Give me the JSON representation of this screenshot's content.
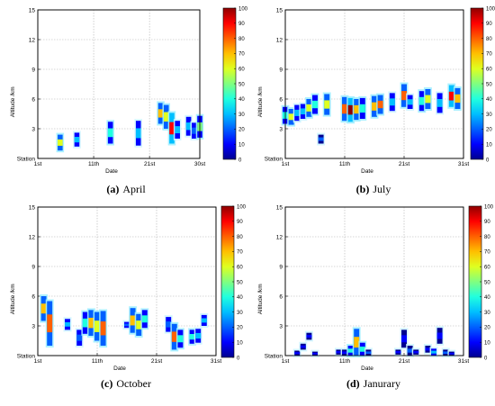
{
  "colorbar": {
    "ticks": [
      "0",
      "10",
      "20",
      "30",
      "40",
      "50",
      "60",
      "70",
      "80",
      "90",
      "100"
    ],
    "colors": [
      "#00008f",
      "#0000ff",
      "#0060ff",
      "#00bfff",
      "#20ffdf",
      "#80ff80",
      "#dfff20",
      "#ffbf00",
      "#ff6000",
      "#ff0000",
      "#8f0000"
    ]
  },
  "chart_data": [
    {
      "type": "heatmap",
      "caption_label": "(a)",
      "caption_text": "April",
      "xlabel": "Date",
      "ylabel": "Altitude /km",
      "xticks": [
        "1st",
        "11th",
        "21st",
        "30st"
      ],
      "yticks": [
        "Station",
        "3",
        "6",
        "9",
        "12",
        "15"
      ],
      "ylim": [
        0,
        15
      ],
      "grid": true,
      "columns": [
        {
          "x": 5,
          "y0": 0.8,
          "y1": 2.4,
          "peak": 60
        },
        {
          "x": 8,
          "y0": 1.2,
          "y1": 2.6,
          "peak": 30
        },
        {
          "x": 14,
          "y0": 1.5,
          "y1": 3.7,
          "peak": 40
        },
        {
          "x": 19,
          "y0": 1.3,
          "y1": 3.8,
          "peak": 25
        },
        {
          "x": 23,
          "y0": 3.5,
          "y1": 5.6,
          "peak": 70
        },
        {
          "x": 24,
          "y0": 3.0,
          "y1": 5.4,
          "peak": 60
        },
        {
          "x": 25,
          "y0": 1.5,
          "y1": 4.6,
          "peak": 85
        },
        {
          "x": 26,
          "y0": 2.0,
          "y1": 3.8,
          "peak": 30
        },
        {
          "x": 28,
          "y0": 2.3,
          "y1": 4.2,
          "peak": 25
        },
        {
          "x": 29,
          "y0": 2.0,
          "y1": 3.6,
          "peak": 20
        },
        {
          "x": 30,
          "y0": 2.1,
          "y1": 4.3,
          "peak": 45
        }
      ]
    },
    {
      "type": "heatmap",
      "caption_label": "(b)",
      "caption_text": "July",
      "xlabel": "Date",
      "ylabel": "Altitude /km",
      "xticks": [
        "1st",
        "11th",
        "21st",
        "31st"
      ],
      "yticks": [
        "Station",
        "3",
        "6",
        "9",
        "12",
        "15"
      ],
      "ylim": [
        0,
        15
      ],
      "grid": true,
      "columns": [
        {
          "x": 1,
          "y0": 3.5,
          "y1": 5.2,
          "peak": 40
        },
        {
          "x": 2,
          "y0": 3.4,
          "y1": 5.0,
          "peak": 60
        },
        {
          "x": 3,
          "y0": 3.8,
          "y1": 5.4,
          "peak": 30
        },
        {
          "x": 4,
          "y0": 4.0,
          "y1": 5.5,
          "peak": 25
        },
        {
          "x": 5,
          "y0": 4.2,
          "y1": 6.0,
          "peak": 55
        },
        {
          "x": 6,
          "y0": 4.5,
          "y1": 6.4,
          "peak": 40
        },
        {
          "x": 7,
          "y0": 1.5,
          "y1": 2.4,
          "peak": 15
        },
        {
          "x": 8,
          "y0": 4.4,
          "y1": 6.5,
          "peak": 60
        },
        {
          "x": 11,
          "y0": 3.8,
          "y1": 6.2,
          "peak": 80
        },
        {
          "x": 12,
          "y0": 3.7,
          "y1": 6.1,
          "peak": 95
        },
        {
          "x": 13,
          "y0": 3.9,
          "y1": 6.0,
          "peak": 70
        },
        {
          "x": 14,
          "y0": 4.0,
          "y1": 6.1,
          "peak": 40
        },
        {
          "x": 16,
          "y0": 4.2,
          "y1": 6.3,
          "peak": 65
        },
        {
          "x": 17,
          "y0": 4.5,
          "y1": 6.4,
          "peak": 75
        },
        {
          "x": 19,
          "y0": 4.8,
          "y1": 6.6,
          "peak": 25
        },
        {
          "x": 21,
          "y0": 5.2,
          "y1": 7.5,
          "peak": 80
        },
        {
          "x": 22,
          "y0": 5.0,
          "y1": 6.4,
          "peak": 30
        },
        {
          "x": 24,
          "y0": 4.8,
          "y1": 6.8,
          "peak": 35
        },
        {
          "x": 25,
          "y0": 5.0,
          "y1": 7.0,
          "peak": 55
        },
        {
          "x": 27,
          "y0": 4.6,
          "y1": 6.6,
          "peak": 30
        },
        {
          "x": 29,
          "y0": 5.2,
          "y1": 7.4,
          "peak": 85
        },
        {
          "x": 30,
          "y0": 5.0,
          "y1": 7.1,
          "peak": 70
        }
      ]
    },
    {
      "type": "heatmap",
      "caption_label": "(c)",
      "caption_text": "October",
      "xlabel": "Date",
      "ylabel": "Altitude /km",
      "xticks": [
        "1st",
        "11th",
        "21st",
        "31st"
      ],
      "yticks": [
        "Station",
        "3",
        "6",
        "9",
        "12",
        "15"
      ],
      "ylim": [
        0,
        15
      ],
      "grid": true,
      "columns": [
        {
          "x": 2,
          "y0": 3.5,
          "y1": 6.0,
          "peak": 70
        },
        {
          "x": 3,
          "y0": 1.0,
          "y1": 5.5,
          "peak": 80
        },
        {
          "x": 6,
          "y0": 2.6,
          "y1": 3.7,
          "peak": 30
        },
        {
          "x": 8,
          "y0": 1.0,
          "y1": 2.6,
          "peak": 20
        },
        {
          "x": 9,
          "y0": 2.2,
          "y1": 4.4,
          "peak": 40
        },
        {
          "x": 10,
          "y0": 2.0,
          "y1": 4.6,
          "peak": 70
        },
        {
          "x": 11,
          "y0": 1.5,
          "y1": 4.4,
          "peak": 60
        },
        {
          "x": 12,
          "y0": 1.0,
          "y1": 4.5,
          "peak": 80
        },
        {
          "x": 16,
          "y0": 2.8,
          "y1": 3.4,
          "peak": 20
        },
        {
          "x": 17,
          "y0": 2.3,
          "y1": 4.8,
          "peak": 65
        },
        {
          "x": 18,
          "y0": 2.0,
          "y1": 4.2,
          "peak": 55
        },
        {
          "x": 19,
          "y0": 2.8,
          "y1": 4.6,
          "peak": 35
        },
        {
          "x": 23,
          "y0": 2.4,
          "y1": 3.9,
          "peak": 20
        },
        {
          "x": 24,
          "y0": 0.6,
          "y1": 3.2,
          "peak": 75
        },
        {
          "x": 25,
          "y0": 0.8,
          "y1": 2.6,
          "peak": 40
        },
        {
          "x": 27,
          "y0": 1.2,
          "y1": 2.6,
          "peak": 35
        },
        {
          "x": 28,
          "y0": 1.3,
          "y1": 2.7,
          "peak": 25
        },
        {
          "x": 29,
          "y0": 3.0,
          "y1": 4.1,
          "peak": 30
        }
      ]
    },
    {
      "type": "heatmap",
      "caption_label": "(d)",
      "caption_text": "Janurary",
      "xlabel": "Date",
      "ylabel": "Altitude /km",
      "xticks": [
        "1st",
        "11th",
        "21st",
        "31st"
      ],
      "yticks": [
        "Station",
        "3",
        "6",
        "9",
        "12",
        "15"
      ],
      "ylim": [
        0,
        15
      ],
      "grid": true,
      "columns": [
        {
          "x": 3,
          "y0": 0.0,
          "y1": 0.5,
          "peak": 10
        },
        {
          "x": 4,
          "y0": 0.6,
          "y1": 1.2,
          "peak": 5
        },
        {
          "x": 5,
          "y0": 1.6,
          "y1": 2.3,
          "peak": 5
        },
        {
          "x": 6,
          "y0": 0.0,
          "y1": 0.4,
          "peak": 5
        },
        {
          "x": 10,
          "y0": 0.1,
          "y1": 0.6,
          "peak": 10
        },
        {
          "x": 11,
          "y0": 0.0,
          "y1": 0.6,
          "peak": 10
        },
        {
          "x": 12,
          "y0": 0.0,
          "y1": 1.0,
          "peak": 35
        },
        {
          "x": 13,
          "y0": 0.0,
          "y1": 2.7,
          "peak": 65
        },
        {
          "x": 14,
          "y0": 0.0,
          "y1": 1.3,
          "peak": 40
        },
        {
          "x": 15,
          "y0": 0.0,
          "y1": 0.6,
          "peak": 15
        },
        {
          "x": 20,
          "y0": 0.1,
          "y1": 0.6,
          "peak": 5
        },
        {
          "x": 21,
          "y0": 0.8,
          "y1": 2.6,
          "peak": 10
        },
        {
          "x": 22,
          "y0": 0.0,
          "y1": 1.0,
          "peak": 15
        },
        {
          "x": 23,
          "y0": 0.1,
          "y1": 0.6,
          "peak": 5
        },
        {
          "x": 25,
          "y0": 0.3,
          "y1": 1.0,
          "peak": 10
        },
        {
          "x": 26,
          "y0": 0.0,
          "y1": 0.7,
          "peak": 30
        },
        {
          "x": 27,
          "y0": 1.2,
          "y1": 2.8,
          "peak": 10
        },
        {
          "x": 28,
          "y0": 0.0,
          "y1": 0.6,
          "peak": 15
        },
        {
          "x": 29,
          "y0": 0.0,
          "y1": 0.4,
          "peak": 5
        }
      ]
    }
  ]
}
